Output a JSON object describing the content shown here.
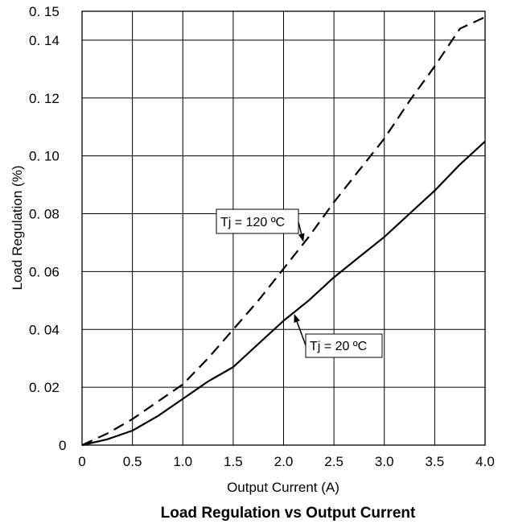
{
  "chart_data": {
    "type": "line",
    "title": "Load Regulation vs Output Current",
    "xlabel": "Output  Current (A)",
    "ylabel": "Load Regulation (%)",
    "xlim": [
      0,
      4.0
    ],
    "ylim": [
      0,
      0.15
    ],
    "grid": true,
    "x_ticks": [
      0,
      0.5,
      1.0,
      1.5,
      2.0,
      2.5,
      3.0,
      3.5,
      4.0
    ],
    "x_tick_labels": [
      "0",
      "0.5",
      "1.0",
      "1.5",
      "2.0",
      "2.5",
      "3.0",
      "3.5",
      "4.0"
    ],
    "y_ticks": [
      0,
      0.02,
      0.04,
      0.06,
      0.08,
      0.1,
      0.12,
      0.14,
      0.15
    ],
    "y_tick_labels": [
      "0",
      "0. 02",
      "0. 04",
      "0. 06",
      "0. 08",
      "0. 10",
      "0. 12",
      "0. 14",
      "0. 15"
    ],
    "series": [
      {
        "name": "Tj = 120 ºC",
        "style": "dashed",
        "color": "#000000",
        "x": [
          0,
          0.25,
          0.5,
          0.75,
          1.0,
          1.25,
          1.5,
          1.75,
          2.0,
          2.25,
          2.5,
          2.75,
          3.0,
          3.25,
          3.5,
          3.75,
          4.0
        ],
        "y": [
          0,
          0.004,
          0.009,
          0.015,
          0.021,
          0.03,
          0.04,
          0.05,
          0.061,
          0.072,
          0.084,
          0.095,
          0.106,
          0.119,
          0.131,
          0.144,
          0.148
        ]
      },
      {
        "name": "Tj = 20 ºC",
        "style": "solid",
        "color": "#000000",
        "x": [
          0,
          0.25,
          0.5,
          0.75,
          1.0,
          1.25,
          1.5,
          1.75,
          2.0,
          2.25,
          2.5,
          2.75,
          3.0,
          3.25,
          3.5,
          3.75,
          4.0
        ],
        "y": [
          0,
          0.002,
          0.005,
          0.01,
          0.016,
          0.022,
          0.027,
          0.035,
          0.043,
          0.05,
          0.058,
          0.065,
          0.072,
          0.08,
          0.088,
          0.097,
          0.105
        ]
      }
    ],
    "annotations": [
      {
        "text": "Tj = 120 ºC",
        "series": 0,
        "arrow_to_x": 2.2
      },
      {
        "text": "Tj = 20 ºC",
        "series": 1,
        "arrow_to_x": 2.1
      }
    ]
  }
}
